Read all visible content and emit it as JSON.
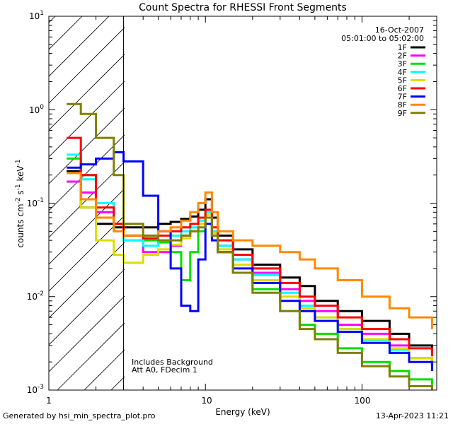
{
  "chart_data": {
    "type": "line",
    "title": "Count Spectra for RHESSI Front Segments",
    "xlabel": "Energy (keV)",
    "ylabel": "counts cm^-2 s^-1 keV^-1",
    "xscale": "log",
    "yscale": "log",
    "xlim": [
      1,
      300
    ],
    "ylim": [
      0.001,
      10
    ],
    "x_tick_labels": [
      "1",
      "10",
      "100"
    ],
    "y_tick_labels": [
      "10^-3",
      "10^-2",
      "10^-1",
      "10^0",
      "10^1"
    ],
    "hatched_region_x": [
      1,
      3
    ],
    "date": "16-Oct-2007",
    "time_range": "05:01:00 to 05:02:00",
    "annotations": [
      "Includes Background",
      "Att A0, FDecim 1"
    ],
    "series": [
      {
        "name": "1F",
        "color": "#000000",
        "x": [
          1.3,
          1.6,
          2.0,
          2.6,
          3.0,
          4.0,
          5.0,
          6.0,
          7.0,
          8.0,
          9.0,
          10.0,
          11.0,
          12.0,
          15.0,
          20.0,
          30.0,
          40.0,
          50.0,
          70.0,
          100.0,
          150.0,
          200.0,
          280.0
        ],
        "y": [
          0.22,
          0.09,
          0.06,
          0.055,
          0.055,
          0.055,
          0.06,
          0.063,
          0.068,
          0.072,
          0.085,
          0.11,
          0.07,
          0.045,
          0.032,
          0.022,
          0.016,
          0.013,
          0.009,
          0.007,
          0.0055,
          0.004,
          0.003,
          0.0025
        ]
      },
      {
        "name": "2F",
        "color": "#ff00ff",
        "x": [
          1.3,
          1.6,
          2.0,
          2.6,
          3.0,
          4.0,
          5.0,
          6.0,
          7.0,
          8.0,
          9.0,
          10.0,
          11.0,
          12.0,
          15.0,
          20.0,
          30.0,
          40.0,
          50.0,
          70.0,
          100.0,
          150.0,
          200.0,
          280.0
        ],
        "y": [
          0.17,
          0.13,
          0.08,
          0.06,
          0.04,
          0.03,
          0.03,
          0.035,
          0.045,
          0.05,
          0.06,
          0.07,
          0.05,
          0.035,
          0.025,
          0.018,
          0.012,
          0.009,
          0.007,
          0.005,
          0.004,
          0.003,
          0.0022,
          0.0018
        ]
      },
      {
        "name": "3F",
        "color": "#00dd00",
        "x": [
          1.3,
          1.6,
          2.0,
          2.6,
          3.0,
          4.0,
          5.0,
          6.0,
          7.0,
          8.0,
          9.0,
          10.0,
          11.0,
          12.0,
          15.0,
          20.0,
          30.0,
          40.0,
          50.0,
          70.0,
          100.0,
          150.0,
          200.0,
          280.0
        ],
        "y": [
          0.3,
          0.2,
          0.1,
          0.06,
          0.045,
          0.04,
          0.038,
          0.03,
          0.015,
          0.03,
          0.05,
          0.08,
          0.045,
          0.03,
          0.018,
          0.012,
          0.007,
          0.005,
          0.004,
          0.0028,
          0.002,
          0.0016,
          0.0013,
          0.0011
        ]
      },
      {
        "name": "4F",
        "color": "#00ffff",
        "x": [
          1.3,
          1.6,
          2.0,
          2.6,
          3.0,
          4.0,
          5.0,
          6.0,
          7.0,
          8.0,
          9.0,
          10.0,
          11.0,
          12.0,
          15.0,
          20.0,
          30.0,
          40.0,
          50.0,
          70.0,
          100.0,
          150.0,
          200.0,
          280.0
        ],
        "y": [
          0.33,
          0.18,
          0.1,
          0.05,
          0.04,
          0.035,
          0.04,
          0.045,
          0.05,
          0.055,
          0.065,
          0.08,
          0.05,
          0.035,
          0.025,
          0.017,
          0.011,
          0.008,
          0.006,
          0.0045,
          0.0034,
          0.0027,
          0.0022,
          0.0018
        ]
      },
      {
        "name": "5F",
        "color": "#dddd00",
        "x": [
          1.3,
          1.6,
          2.0,
          2.6,
          3.0,
          4.0,
          5.0,
          6.0,
          7.0,
          8.0,
          9.0,
          10.0,
          11.0,
          12.0,
          15.0,
          20.0,
          30.0,
          40.0,
          50.0,
          70.0,
          100.0,
          150.0,
          200.0,
          280.0
        ],
        "y": [
          0.21,
          0.09,
          0.04,
          0.028,
          0.023,
          0.028,
          0.032,
          0.036,
          0.042,
          0.05,
          0.06,
          0.075,
          0.048,
          0.032,
          0.022,
          0.015,
          0.01,
          0.0075,
          0.006,
          0.0045,
          0.0035,
          0.0028,
          0.0022,
          0.0018
        ]
      },
      {
        "name": "6F",
        "color": "#ff0000",
        "x": [
          1.3,
          1.6,
          2.0,
          2.6,
          3.0,
          4.0,
          5.0,
          6.0,
          7.0,
          8.0,
          9.0,
          10.0,
          11.0,
          12.0,
          15.0,
          20.0,
          30.0,
          40.0,
          50.0,
          70.0,
          100.0,
          150.0,
          200.0,
          280.0
        ],
        "y": [
          0.5,
          0.2,
          0.09,
          0.06,
          0.045,
          0.042,
          0.045,
          0.05,
          0.055,
          0.06,
          0.07,
          0.085,
          0.055,
          0.04,
          0.028,
          0.02,
          0.014,
          0.01,
          0.008,
          0.006,
          0.0045,
          0.0035,
          0.0028,
          0.0023
        ]
      },
      {
        "name": "7F",
        "color": "#0000ff",
        "x": [
          1.3,
          1.6,
          2.0,
          2.6,
          3.0,
          4.0,
          5.0,
          6.0,
          7.0,
          8.0,
          9.0,
          10.0,
          11.0,
          12.0,
          15.0,
          20.0,
          30.0,
          40.0,
          50.0,
          70.0,
          100.0,
          150.0,
          200.0,
          280.0
        ],
        "y": [
          0.24,
          0.26,
          0.3,
          0.35,
          0.28,
          0.12,
          0.05,
          0.02,
          0.008,
          0.007,
          0.025,
          0.06,
          0.04,
          0.03,
          0.02,
          0.014,
          0.009,
          0.007,
          0.0055,
          0.0042,
          0.0032,
          0.0025,
          0.002,
          0.0016
        ]
      },
      {
        "name": "8F",
        "color": "#ff8800",
        "x": [
          1.3,
          1.6,
          2.0,
          2.6,
          3.0,
          4.0,
          5.0,
          6.0,
          7.0,
          8.0,
          9.0,
          10.0,
          11.0,
          12.0,
          15.0,
          20.0,
          30.0,
          40.0,
          50.0,
          70.0,
          100.0,
          150.0,
          200.0,
          280.0
        ],
        "y": [
          0.21,
          0.11,
          0.07,
          0.05,
          0.045,
          0.045,
          0.05,
          0.055,
          0.065,
          0.08,
          0.1,
          0.13,
          0.08,
          0.05,
          0.04,
          0.035,
          0.03,
          0.025,
          0.02,
          0.015,
          0.01,
          0.0075,
          0.006,
          0.0045
        ]
      },
      {
        "name": "9F",
        "color": "#808000",
        "x": [
          1.3,
          1.6,
          2.0,
          2.6,
          3.0,
          4.0,
          5.0,
          6.0,
          7.0,
          8.0,
          9.0,
          10.0,
          11.0,
          12.0,
          15.0,
          20.0,
          30.0,
          40.0,
          50.0,
          70.0,
          100.0,
          150.0,
          200.0,
          280.0
        ],
        "y": [
          1.15,
          0.9,
          0.5,
          0.2,
          0.06,
          0.045,
          0.04,
          0.04,
          0.045,
          0.05,
          0.055,
          0.07,
          0.045,
          0.03,
          0.018,
          0.011,
          0.007,
          0.0045,
          0.0035,
          0.0025,
          0.0018,
          0.0014,
          0.0011,
          0.0009
        ]
      }
    ]
  },
  "footer": {
    "generated_by": "Generated by hsi_min_spectra_plot.pro",
    "timestamp": "13-Apr-2023 11:21"
  }
}
